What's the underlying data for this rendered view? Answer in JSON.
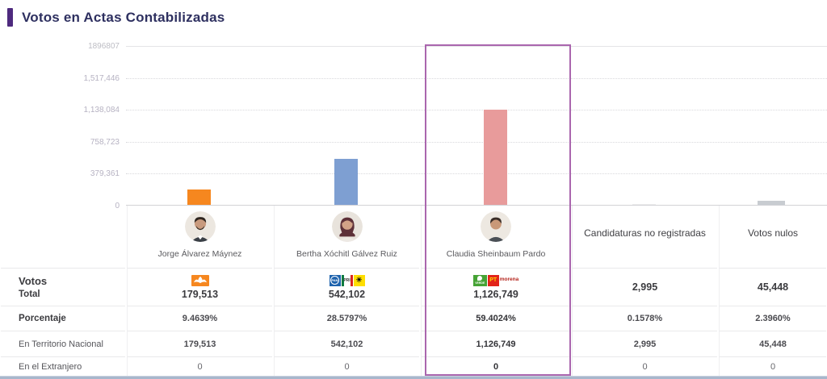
{
  "header": {
    "title": "Votos en Actas Contabilizadas"
  },
  "chart_data": {
    "type": "bar",
    "title": "Votos en Actas Contabilizadas",
    "categories": [
      "Jorge Álvarez Máynez",
      "Bertha Xóchitl Gálvez Ruiz",
      "Claudia Sheinbaum Pardo",
      "Candidaturas no registradas",
      "Votos nulos"
    ],
    "values": [
      179513,
      542102,
      1126749,
      2995,
      45448
    ],
    "ylim": [
      0,
      1896807
    ],
    "yticks_top_to_bottom": [
      "1896807",
      "1,517,446",
      "1,138,084",
      "758,723",
      "379,361",
      "0"
    ],
    "bar_colors": [
      "#F6871F",
      "#7E9FD2",
      "#E89B9B",
      "#EDEDED",
      "#C8CCD1"
    ],
    "highlighted_category": "Claudia Sheinbaum Pardo",
    "grid": "horizontal-dotted",
    "legend_position": "none"
  },
  "columns": [
    {
      "name": "Jorge Álvarez Máynez",
      "total": "179,513",
      "porcentaje": "9.4639%",
      "territorio": "179,513",
      "extranjero": "0",
      "parties": [
        {
          "id": "mc",
          "label": "MC"
        }
      ]
    },
    {
      "name": "Bertha Xóchitl Gálvez Ruiz",
      "total": "542,102",
      "porcentaje": "28.5797%",
      "territorio": "542,102",
      "extranjero": "0",
      "parties": [
        {
          "id": "pan",
          "label": "PAN"
        },
        {
          "id": "pri",
          "label": "PRI"
        },
        {
          "id": "prd",
          "label": "PRD",
          "glyph": "☀"
        }
      ]
    },
    {
      "name": "Claudia Sheinbaum Pardo",
      "total": "1,126,749",
      "porcentaje": "59.4024%",
      "territorio": "1,126,749",
      "extranjero": "0",
      "parties": [
        {
          "id": "pvem",
          "label": "VERDE"
        },
        {
          "id": "pt",
          "label": "PT"
        },
        {
          "id": "morena",
          "label": "morena"
        }
      ]
    },
    {
      "name": "Candidaturas no registradas",
      "total": "2,995",
      "porcentaje": "0.1578%",
      "territorio": "2,995",
      "extranjero": "0",
      "parties": []
    },
    {
      "name": "Votos nulos",
      "total": "45,448",
      "porcentaje": "2.3960%",
      "territorio": "45,448",
      "extranjero": "0",
      "parties": []
    }
  ],
  "row_labels": {
    "votos": "Votos",
    "total": "Total",
    "porcentaje": "Porcentaje",
    "territorio": "En Territorio Nacional",
    "extranjero": "En el Extranjero"
  },
  "colors": {
    "accent": "#4E2A7E",
    "title_text": "#2E3060",
    "highlight_border": "#AA66AE",
    "mc_orange": "#F6871F",
    "pan_blue": "#1E63AD",
    "pri_green": "#0B7A40",
    "pri_red": "#DA251D",
    "prd_yellow": "#FFDE00",
    "pvem_green": "#46A335",
    "pt_red": "#E2231A",
    "morena_red": "#B5261E"
  }
}
